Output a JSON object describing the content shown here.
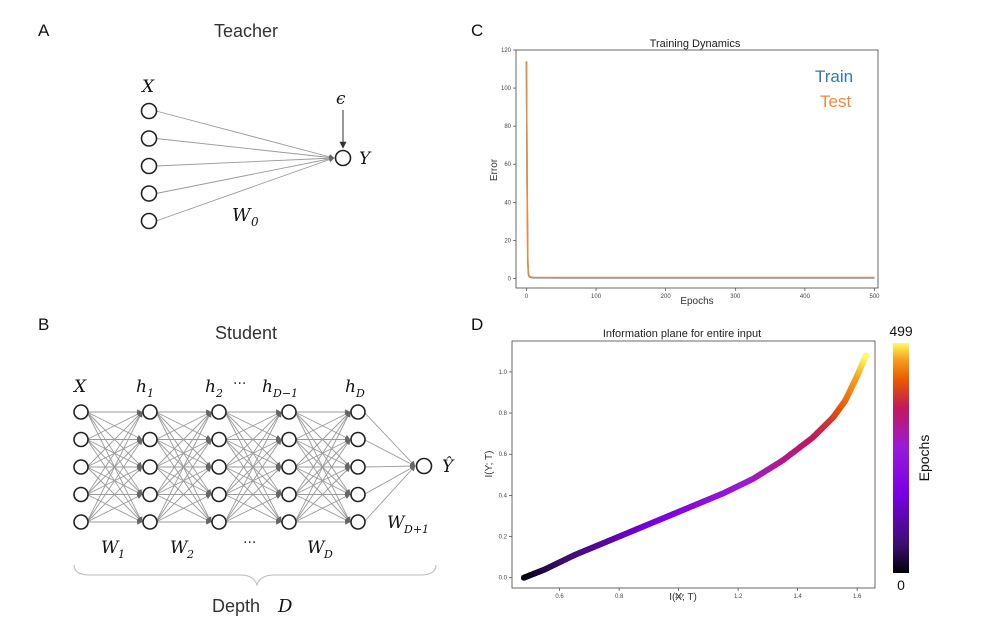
{
  "panels": {
    "a": {
      "label": "A",
      "title": "Teacher",
      "input_label": "X",
      "output_label": "Y",
      "noise_label": "ϵ",
      "weight_label": "W",
      "weight_sub": "0",
      "input_count": 5
    },
    "b": {
      "label": "B",
      "title": "Student",
      "layers": [
        {
          "label": "X",
          "sub": ""
        },
        {
          "label": "h",
          "sub": "1"
        },
        {
          "label": "h",
          "sub": "2"
        },
        {
          "label": "h",
          "sub": "D−1"
        },
        {
          "label": "h",
          "sub": "D"
        }
      ],
      "dots_between_layers": "···",
      "output_label": "Ŷ",
      "weights": [
        {
          "label": "W",
          "sub": "1"
        },
        {
          "label": "W",
          "sub": "2"
        },
        {
          "label": "···",
          "sub": ""
        },
        {
          "label": "W",
          "sub": "D"
        },
        {
          "label": "W",
          "sub": "D+1"
        }
      ],
      "depth_label": "Depth",
      "depth_var": "D",
      "nodes_per_layer": 5
    },
    "c": {
      "label": "C",
      "legend_train": "Train",
      "legend_test": "Test"
    },
    "d": {
      "label": "D",
      "colorbar_label": "Epochs",
      "colorbar_max": "499",
      "colorbar_min": "0"
    }
  },
  "chart_data": [
    {
      "type": "line",
      "title": "Training Dynamics",
      "xlabel": "Epochs",
      "ylabel": "Error",
      "xlim": [
        -15,
        505
      ],
      "ylim": [
        -5,
        120
      ],
      "xticks": [
        0,
        100,
        200,
        300,
        400,
        500
      ],
      "yticks": [
        0,
        20,
        40,
        60,
        80,
        100,
        120
      ],
      "series": [
        {
          "name": "Train",
          "color": "#2f78b7",
          "x": [
            0,
            1,
            2,
            3,
            4,
            6,
            10,
            50,
            100,
            200,
            300,
            400,
            500
          ],
          "y": [
            114,
            46,
            8,
            2,
            1,
            0.6,
            0.4,
            0.3,
            0.3,
            0.3,
            0.3,
            0.3,
            0.3
          ]
        },
        {
          "name": "Test",
          "color": "#ef8a3a",
          "x": [
            0,
            1,
            2,
            3,
            4,
            6,
            10,
            50,
            100,
            200,
            300,
            400,
            500
          ],
          "y": [
            114,
            47,
            9,
            2.5,
            1.2,
            0.8,
            0.6,
            0.5,
            0.5,
            0.5,
            0.5,
            0.5,
            0.5
          ]
        }
      ]
    },
    {
      "type": "scatter",
      "title": "Information plane for entire input",
      "xlabel": "I(X; T)",
      "ylabel": "I(Y; T)",
      "xlim": [
        0.44,
        1.66
      ],
      "ylim": [
        -0.05,
        1.15
      ],
      "xticks": [
        0.6,
        0.8,
        1.0,
        1.2,
        1.4,
        1.6
      ],
      "xtick_labels": [
        "0.6",
        "0.8",
        "1.0",
        "1.2",
        "1.4",
        "1.6"
      ],
      "yticks": [
        0.0,
        0.2,
        0.4,
        0.6,
        0.8,
        1.0
      ],
      "ytick_labels": [
        "0.0",
        "0.2",
        "0.4",
        "0.6",
        "0.8",
        "1.0"
      ],
      "colorscale": [
        "#000004",
        "#3b0f70",
        "#7b00e6",
        "#9a1bd6",
        "#c2185b",
        "#e85a00",
        "#f8a020",
        "#fcfd5a"
      ],
      "epochs": [
        0,
        499
      ],
      "curve": [
        [
          0.48,
          0.0
        ],
        [
          0.55,
          0.04
        ],
        [
          0.65,
          0.11
        ],
        [
          0.75,
          0.17
        ],
        [
          0.85,
          0.23
        ],
        [
          0.95,
          0.29
        ],
        [
          1.05,
          0.35
        ],
        [
          1.15,
          0.41
        ],
        [
          1.25,
          0.48
        ],
        [
          1.35,
          0.57
        ],
        [
          1.45,
          0.68
        ],
        [
          1.52,
          0.78
        ],
        [
          1.56,
          0.86
        ],
        [
          1.6,
          0.98
        ],
        [
          1.63,
          1.08
        ]
      ]
    }
  ]
}
